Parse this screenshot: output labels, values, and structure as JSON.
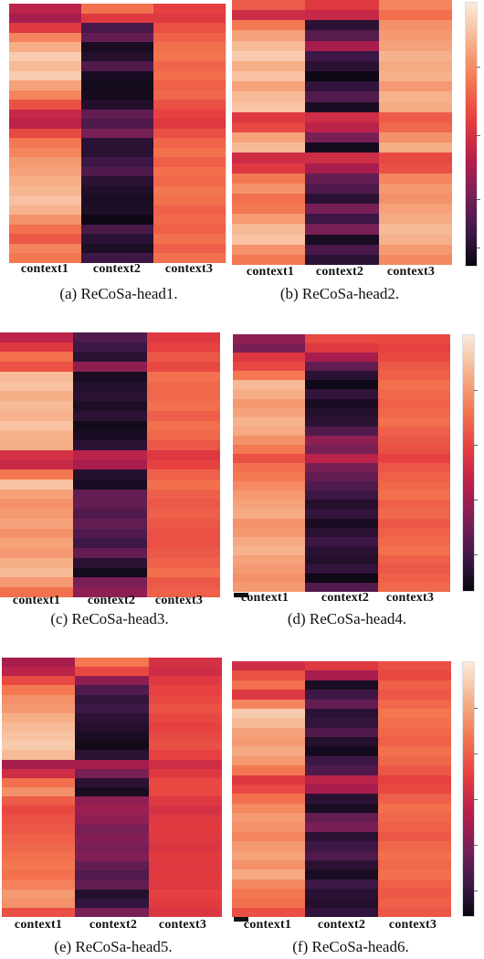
{
  "panels": [
    {
      "caption": "(a)  ReCoSa-head1.",
      "x_labels": [
        "context1",
        "context2",
        "context3"
      ],
      "columns": [
        [
          0.45,
          0.4,
          0.55,
          0.75,
          0.85,
          0.92,
          0.88,
          0.92,
          0.82,
          0.75,
          0.62,
          0.48,
          0.45,
          0.6,
          0.72,
          0.75,
          0.8,
          0.82,
          0.85,
          0.87,
          0.9,
          0.86,
          0.78,
          0.7,
          0.64,
          0.75,
          0.72
        ],
        [
          0.7,
          0.55,
          0.18,
          0.25,
          0.05,
          0.08,
          0.2,
          0.05,
          0.03,
          0.04,
          0.08,
          0.25,
          0.2,
          0.3,
          0.1,
          0.1,
          0.15,
          0.2,
          0.1,
          0.07,
          0.05,
          0.06,
          0.02,
          0.18,
          0.1,
          0.06,
          0.15
        ],
        [
          0.58,
          0.55,
          0.62,
          0.66,
          0.7,
          0.71,
          0.67,
          0.7,
          0.66,
          0.68,
          0.62,
          0.58,
          0.55,
          0.62,
          0.67,
          0.7,
          0.66,
          0.7,
          0.68,
          0.72,
          0.7,
          0.66,
          0.68,
          0.66,
          0.7,
          0.66,
          0.7
        ]
      ]
    },
    {
      "caption": "(b)  ReCoSa-head2.",
      "x_labels": [
        "context1",
        "context2",
        "context3"
      ],
      "columns": [
        [
          0.65,
          0.5,
          0.72,
          0.82,
          0.88,
          0.92,
          0.85,
          0.9,
          0.82,
          0.88,
          0.9,
          0.55,
          0.6,
          0.82,
          0.88,
          0.5,
          0.55,
          0.72,
          0.78,
          0.7,
          0.72,
          0.8,
          0.88,
          0.9,
          0.78,
          0.72
        ],
        [
          0.55,
          0.48,
          0.1,
          0.22,
          0.4,
          0.15,
          0.1,
          0.02,
          0.12,
          0.2,
          0.05,
          0.5,
          0.45,
          0.3,
          0.04,
          0.5,
          0.4,
          0.25,
          0.2,
          0.1,
          0.3,
          0.15,
          0.3,
          0.05,
          0.18,
          0.1
        ],
        [
          0.75,
          0.7,
          0.78,
          0.8,
          0.82,
          0.86,
          0.84,
          0.86,
          0.8,
          0.86,
          0.84,
          0.65,
          0.68,
          0.78,
          0.85,
          0.6,
          0.62,
          0.75,
          0.8,
          0.78,
          0.82,
          0.84,
          0.88,
          0.86,
          0.8,
          0.76
        ]
      ]
    },
    {
      "caption": "(c)  ReCoSa-head3.",
      "x_labels": [
        "context1",
        "context2",
        "context3"
      ],
      "columns": [
        [
          0.45,
          0.55,
          0.7,
          0.62,
          0.88,
          0.9,
          0.85,
          0.88,
          0.86,
          0.9,
          0.86,
          0.85,
          0.52,
          0.48,
          0.72,
          0.9,
          0.82,
          0.78,
          0.8,
          0.82,
          0.78,
          0.82,
          0.8,
          0.85,
          0.88,
          0.8,
          0.7
        ],
        [
          0.2,
          0.15,
          0.1,
          0.35,
          0.05,
          0.08,
          0.1,
          0.06,
          0.1,
          0.03,
          0.05,
          0.1,
          0.45,
          0.4,
          0.08,
          0.05,
          0.25,
          0.25,
          0.2,
          0.25,
          0.2,
          0.15,
          0.25,
          0.1,
          0.03,
          0.3,
          0.35
        ],
        [
          0.55,
          0.58,
          0.64,
          0.6,
          0.7,
          0.68,
          0.68,
          0.7,
          0.66,
          0.7,
          0.68,
          0.64,
          0.55,
          0.58,
          0.66,
          0.7,
          0.66,
          0.64,
          0.66,
          0.64,
          0.62,
          0.62,
          0.64,
          0.66,
          0.7,
          0.64,
          0.66
        ]
      ]
    },
    {
      "caption": "(d)  ReCoSa-head4.",
      "x_labels": [
        "context1",
        "context2",
        "context3"
      ],
      "columns": [
        [
          0.35,
          0.3,
          0.55,
          0.6,
          0.72,
          0.88,
          0.85,
          0.8,
          0.82,
          0.86,
          0.84,
          0.78,
          0.72,
          0.62,
          0.7,
          0.72,
          0.76,
          0.8,
          0.82,
          0.84,
          0.78,
          0.8,
          0.84,
          0.86,
          0.82,
          0.8,
          0.78,
          0.8
        ],
        [
          0.6,
          0.55,
          0.4,
          0.25,
          0.1,
          0.02,
          0.12,
          0.05,
          0.08,
          0.1,
          0.2,
          0.35,
          0.3,
          0.45,
          0.3,
          0.25,
          0.2,
          0.15,
          0.08,
          0.12,
          0.05,
          0.1,
          0.15,
          0.1,
          0.08,
          0.12,
          0.02,
          0.2
        ],
        [
          0.6,
          0.58,
          0.6,
          0.64,
          0.66,
          0.7,
          0.68,
          0.66,
          0.68,
          0.7,
          0.66,
          0.64,
          0.62,
          0.58,
          0.64,
          0.66,
          0.68,
          0.7,
          0.66,
          0.68,
          0.64,
          0.66,
          0.68,
          0.7,
          0.66,
          0.64,
          0.66,
          0.68
        ]
      ]
    },
    {
      "caption": "(e)  ReCoSa-head5.",
      "x_labels": [
        "context1",
        "context2",
        "context3"
      ],
      "columns": [
        [
          0.4,
          0.45,
          0.6,
          0.72,
          0.78,
          0.8,
          0.85,
          0.88,
          0.9,
          0.92,
          0.88,
          0.4,
          0.5,
          0.7,
          0.78,
          0.65,
          0.6,
          0.62,
          0.64,
          0.66,
          0.68,
          0.7,
          0.72,
          0.7,
          0.74,
          0.8,
          0.78,
          0.62
        ],
        [
          0.72,
          0.6,
          0.35,
          0.2,
          0.12,
          0.15,
          0.1,
          0.08,
          0.05,
          0.03,
          0.1,
          0.4,
          0.3,
          0.1,
          0.05,
          0.35,
          0.38,
          0.35,
          0.3,
          0.32,
          0.3,
          0.32,
          0.25,
          0.2,
          0.25,
          0.08,
          0.12,
          0.3
        ],
        [
          0.52,
          0.5,
          0.55,
          0.58,
          0.6,
          0.62,
          0.6,
          0.58,
          0.6,
          0.62,
          0.58,
          0.5,
          0.55,
          0.6,
          0.6,
          0.55,
          0.52,
          0.55,
          0.56,
          0.55,
          0.54,
          0.56,
          0.55,
          0.56,
          0.55,
          0.58,
          0.56,
          0.54
        ]
      ]
    },
    {
      "caption": "(f)  ReCoSa-head6.",
      "x_labels": [
        "context1",
        "context2",
        "context3"
      ],
      "columns": [
        [
          0.5,
          0.62,
          0.7,
          0.55,
          0.75,
          0.92,
          0.88,
          0.82,
          0.8,
          0.84,
          0.8,
          0.72,
          0.55,
          0.6,
          0.7,
          0.76,
          0.8,
          0.78,
          0.75,
          0.8,
          0.82,
          0.78,
          0.84,
          0.76,
          0.72,
          0.7,
          0.62
        ],
        [
          0.55,
          0.4,
          0.05,
          0.15,
          0.25,
          0.1,
          0.12,
          0.2,
          0.08,
          0.04,
          0.15,
          0.2,
          0.45,
          0.4,
          0.1,
          0.05,
          0.25,
          0.3,
          0.1,
          0.15,
          0.2,
          0.1,
          0.05,
          0.15,
          0.1,
          0.08,
          0.12
        ],
        [
          0.62,
          0.6,
          0.66,
          0.64,
          0.68,
          0.72,
          0.7,
          0.68,
          0.66,
          0.7,
          0.68,
          0.64,
          0.58,
          0.6,
          0.66,
          0.7,
          0.68,
          0.66,
          0.64,
          0.68,
          0.7,
          0.68,
          0.7,
          0.66,
          0.64,
          0.66,
          0.64
        ]
      ]
    }
  ],
  "chart_data": [
    {
      "type": "heatmap",
      "title": "(a)  ReCoSa-head1.",
      "xlabel": "",
      "ylabel": "",
      "x": [
        "context1",
        "context2",
        "context3"
      ]
    },
    {
      "type": "heatmap",
      "title": "(b)  ReCoSa-head2.",
      "xlabel": "",
      "ylabel": "",
      "x": [
        "context1",
        "context2",
        "context3"
      ]
    },
    {
      "type": "heatmap",
      "title": "(c)  ReCoSa-head3.",
      "xlabel": "",
      "ylabel": "",
      "x": [
        "context1",
        "context2",
        "context3"
      ]
    },
    {
      "type": "heatmap",
      "title": "(d)  ReCoSa-head4.",
      "xlabel": "",
      "ylabel": "",
      "x": [
        "context1",
        "context2",
        "context3"
      ]
    },
    {
      "type": "heatmap",
      "title": "(e)  ReCoSa-head5.",
      "xlabel": "",
      "ylabel": "",
      "x": [
        "context1",
        "context2",
        "context3"
      ]
    },
    {
      "type": "heatmap",
      "title": "(f)  ReCoSa-head6.",
      "xlabel": "",
      "ylabel": "",
      "x": [
        "context1",
        "context2",
        "context3"
      ]
    }
  ],
  "colormap": [
    "#08060f",
    "#3a1744",
    "#711f57",
    "#b41e4c",
    "#e53d3f",
    "#f3764f",
    "#f6b18a",
    "#fbebdc"
  ]
}
